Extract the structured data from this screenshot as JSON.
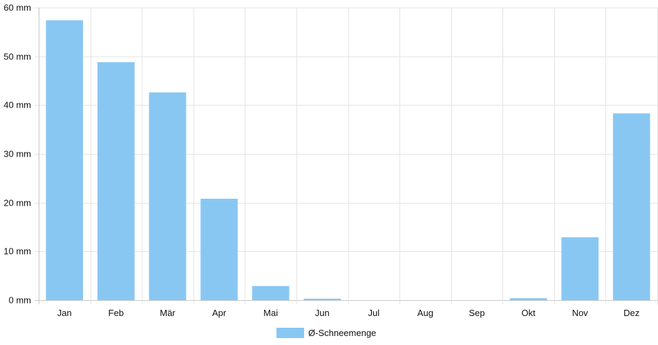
{
  "chart_data": {
    "type": "bar",
    "categories": [
      "Jan",
      "Feb",
      "Mär",
      "Apr",
      "Mai",
      "Jun",
      "Jul",
      "Aug",
      "Sep",
      "Okt",
      "Nov",
      "Dez"
    ],
    "series": [
      {
        "name": "Ø-Schneemenge",
        "values": [
          57.4,
          48.8,
          42.6,
          20.8,
          2.9,
          0.3,
          0.0,
          0.0,
          0.0,
          0.4,
          12.9,
          38.3
        ],
        "color": "#89c7f3"
      }
    ],
    "y_ticks": [
      "0 mm",
      "10 mm",
      "20 mm",
      "30 mm",
      "40 mm",
      "50 mm",
      "60 mm"
    ],
    "ylim": [
      0,
      60
    ],
    "unit": "mm",
    "grid": true,
    "legend_position": "bottom-center"
  }
}
